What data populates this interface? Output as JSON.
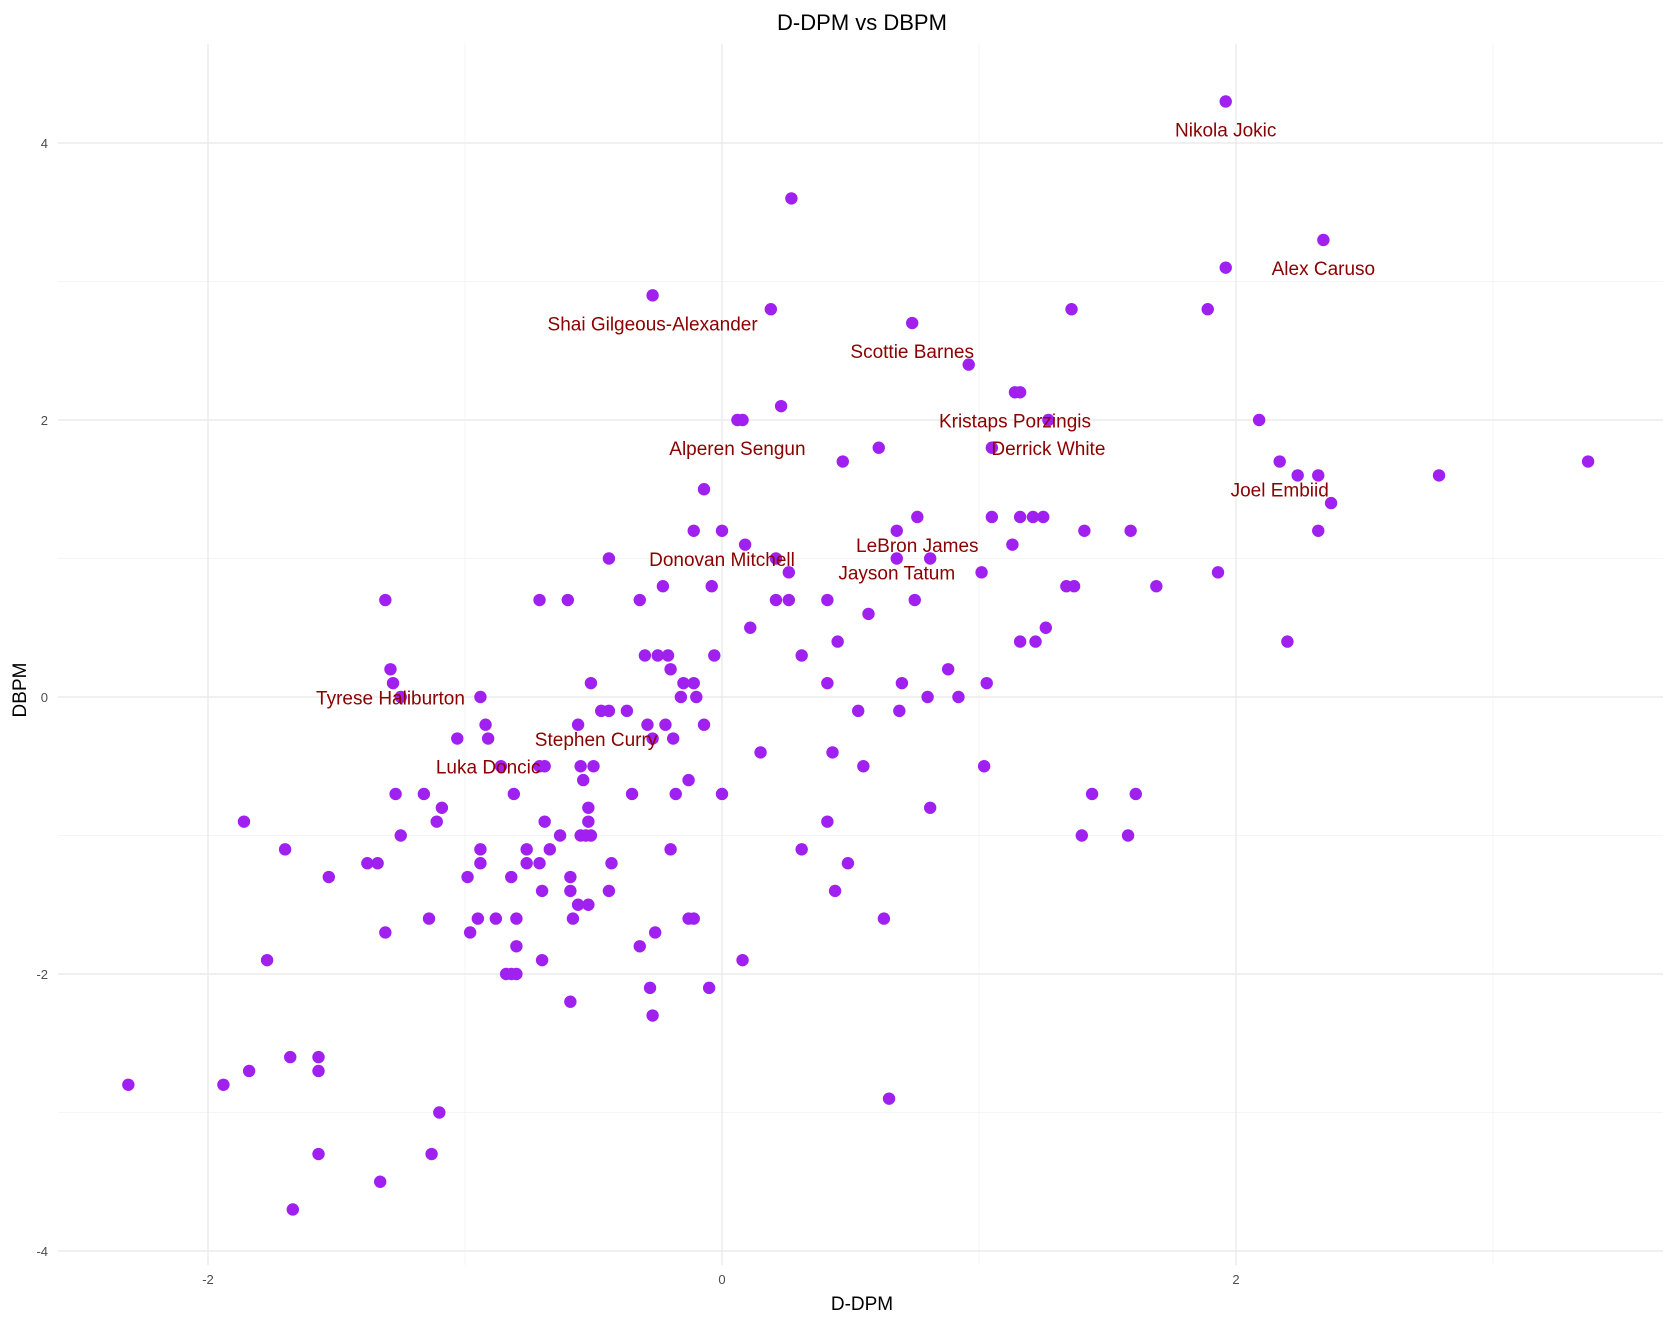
{
  "chart_data": {
    "type": "scatter",
    "title": "D-DPM vs DBPM",
    "xlabel": "D-DPM",
    "ylabel": "DBPM",
    "xlim": [
      -2.6,
      3.7
    ],
    "ylim": [
      -4.2,
      4.5
    ],
    "x_ticks": [
      -2,
      0,
      2
    ],
    "y_ticks": [
      -4,
      -2,
      0,
      2,
      4
    ],
    "grid": true,
    "legend": "none",
    "point_color": "#a020f0",
    "label_color": "#8b0000",
    "points": [
      {
        "x": 1.96,
        "y": 4.3
      },
      {
        "x": 0.27,
        "y": 3.6
      },
      {
        "x": 2.34,
        "y": 3.3
      },
      {
        "x": 1.96,
        "y": 3.1
      },
      {
        "x": -0.27,
        "y": 2.9
      },
      {
        "x": 0.19,
        "y": 2.8
      },
      {
        "x": 1.36,
        "y": 2.8
      },
      {
        "x": 1.89,
        "y": 2.8
      },
      {
        "x": 0.74,
        "y": 2.7
      },
      {
        "x": 0.96,
        "y": 2.4
      },
      {
        "x": 1.14,
        "y": 2.2
      },
      {
        "x": 1.16,
        "y": 2.2
      },
      {
        "x": 0.23,
        "y": 2.1
      },
      {
        "x": 0.06,
        "y": 2.0
      },
      {
        "x": 0.08,
        "y": 2.0
      },
      {
        "x": 1.27,
        "y": 2.0
      },
      {
        "x": 2.09,
        "y": 2.0
      },
      {
        "x": 0.61,
        "y": 1.8
      },
      {
        "x": 1.05,
        "y": 1.8
      },
      {
        "x": 0.47,
        "y": 1.7
      },
      {
        "x": 2.17,
        "y": 1.7
      },
      {
        "x": 3.37,
        "y": 1.7
      },
      {
        "x": 2.24,
        "y": 1.6
      },
      {
        "x": 2.32,
        "y": 1.6
      },
      {
        "x": 2.79,
        "y": 1.6
      },
      {
        "x": -0.07,
        "y": 1.5
      },
      {
        "x": 0.76,
        "y": 1.3
      },
      {
        "x": 1.05,
        "y": 1.3
      },
      {
        "x": 1.16,
        "y": 1.3
      },
      {
        "x": 1.21,
        "y": 1.3
      },
      {
        "x": 1.25,
        "y": 1.3
      },
      {
        "x": 2.37,
        "y": 1.4
      },
      {
        "x": -0.11,
        "y": 1.2
      },
      {
        "x": 0.0,
        "y": 1.2
      },
      {
        "x": 0.68,
        "y": 1.2
      },
      {
        "x": 1.41,
        "y": 1.2
      },
      {
        "x": 1.59,
        "y": 1.2
      },
      {
        "x": 2.32,
        "y": 1.2
      },
      {
        "x": 0.09,
        "y": 1.1
      },
      {
        "x": 1.13,
        "y": 1.1
      },
      {
        "x": -0.44,
        "y": 1.0
      },
      {
        "x": 0.21,
        "y": 1.0
      },
      {
        "x": 0.68,
        "y": 1.0
      },
      {
        "x": 0.81,
        "y": 1.0
      },
      {
        "x": 0.26,
        "y": 0.9
      },
      {
        "x": 1.01,
        "y": 0.9
      },
      {
        "x": 1.93,
        "y": 0.9
      },
      {
        "x": -0.23,
        "y": 0.8
      },
      {
        "x": -0.04,
        "y": 0.8
      },
      {
        "x": 1.34,
        "y": 0.8
      },
      {
        "x": 1.37,
        "y": 0.8
      },
      {
        "x": 1.69,
        "y": 0.8
      },
      {
        "x": -1.31,
        "y": 0.7
      },
      {
        "x": -0.71,
        "y": 0.7
      },
      {
        "x": -0.6,
        "y": 0.7
      },
      {
        "x": -0.32,
        "y": 0.7
      },
      {
        "x": 0.21,
        "y": 0.7
      },
      {
        "x": 0.26,
        "y": 0.7
      },
      {
        "x": 0.41,
        "y": 0.7
      },
      {
        "x": 0.75,
        "y": 0.7
      },
      {
        "x": 0.57,
        "y": 0.6
      },
      {
        "x": 0.11,
        "y": 0.5
      },
      {
        "x": 1.26,
        "y": 0.5
      },
      {
        "x": 0.45,
        "y": 0.4
      },
      {
        "x": 1.16,
        "y": 0.4
      },
      {
        "x": 1.22,
        "y": 0.4
      },
      {
        "x": 2.2,
        "y": 0.4
      },
      {
        "x": -0.3,
        "y": 0.3
      },
      {
        "x": -0.25,
        "y": 0.3
      },
      {
        "x": -0.21,
        "y": 0.3
      },
      {
        "x": -0.03,
        "y": 0.3
      },
      {
        "x": 0.31,
        "y": 0.3
      },
      {
        "x": -1.29,
        "y": 0.2
      },
      {
        "x": -0.2,
        "y": 0.2
      },
      {
        "x": 0.88,
        "y": 0.2
      },
      {
        "x": -1.28,
        "y": 0.1
      },
      {
        "x": -0.51,
        "y": 0.1
      },
      {
        "x": -0.15,
        "y": 0.1
      },
      {
        "x": -0.11,
        "y": 0.1
      },
      {
        "x": 0.41,
        "y": 0.1
      },
      {
        "x": 0.7,
        "y": 0.1
      },
      {
        "x": 1.03,
        "y": 0.1
      },
      {
        "x": -1.25,
        "y": 0.0
      },
      {
        "x": -0.94,
        "y": 0.0
      },
      {
        "x": -0.16,
        "y": 0.0
      },
      {
        "x": -0.1,
        "y": 0.0
      },
      {
        "x": 0.8,
        "y": 0.0
      },
      {
        "x": 0.92,
        "y": 0.0
      },
      {
        "x": -0.47,
        "y": -0.1
      },
      {
        "x": -0.44,
        "y": -0.1
      },
      {
        "x": -0.37,
        "y": -0.1
      },
      {
        "x": 0.53,
        "y": -0.1
      },
      {
        "x": 0.69,
        "y": -0.1
      },
      {
        "x": -1.03,
        "y": -0.3
      },
      {
        "x": -0.91,
        "y": -0.3
      },
      {
        "x": -0.27,
        "y": -0.3
      },
      {
        "x": -0.19,
        "y": -0.3
      },
      {
        "x": -0.56,
        "y": -0.2
      },
      {
        "x": -0.29,
        "y": -0.2
      },
      {
        "x": -0.22,
        "y": -0.2
      },
      {
        "x": -0.07,
        "y": -0.2
      },
      {
        "x": -0.92,
        "y": -0.2
      },
      {
        "x": 0.15,
        "y": -0.4
      },
      {
        "x": 0.43,
        "y": -0.4
      },
      {
        "x": -0.86,
        "y": -0.5
      },
      {
        "x": -0.71,
        "y": -0.5
      },
      {
        "x": -0.69,
        "y": -0.5
      },
      {
        "x": -0.55,
        "y": -0.5
      },
      {
        "x": -0.5,
        "y": -0.5
      },
      {
        "x": 0.55,
        "y": -0.5
      },
      {
        "x": 1.02,
        "y": -0.5
      },
      {
        "x": -0.54,
        "y": -0.6
      },
      {
        "x": -0.13,
        "y": -0.6
      },
      {
        "x": -1.27,
        "y": -0.7
      },
      {
        "x": -1.16,
        "y": -0.7
      },
      {
        "x": -0.81,
        "y": -0.7
      },
      {
        "x": -0.35,
        "y": -0.7
      },
      {
        "x": -0.18,
        "y": -0.7
      },
      {
        "x": 0.0,
        "y": -0.7
      },
      {
        "x": 1.44,
        "y": -0.7
      },
      {
        "x": 1.61,
        "y": -0.7
      },
      {
        "x": -1.09,
        "y": -0.8
      },
      {
        "x": -0.52,
        "y": -0.8
      },
      {
        "x": 0.81,
        "y": -0.8
      },
      {
        "x": -1.86,
        "y": -0.9
      },
      {
        "x": -1.11,
        "y": -0.9
      },
      {
        "x": -0.69,
        "y": -0.9
      },
      {
        "x": -0.52,
        "y": -0.9
      },
      {
        "x": 0.41,
        "y": -0.9
      },
      {
        "x": -1.25,
        "y": -1.0
      },
      {
        "x": -0.63,
        "y": -1.0
      },
      {
        "x": -0.55,
        "y": -1.0
      },
      {
        "x": -0.53,
        "y": -1.0
      },
      {
        "x": -0.51,
        "y": -1.0
      },
      {
        "x": 1.4,
        "y": -1.0
      },
      {
        "x": 1.58,
        "y": -1.0
      },
      {
        "x": -1.7,
        "y": -1.1
      },
      {
        "x": -0.94,
        "y": -1.1
      },
      {
        "x": -0.76,
        "y": -1.1
      },
      {
        "x": -0.67,
        "y": -1.1
      },
      {
        "x": -0.2,
        "y": -1.1
      },
      {
        "x": 0.31,
        "y": -1.1
      },
      {
        "x": -1.38,
        "y": -1.2
      },
      {
        "x": -1.34,
        "y": -1.2
      },
      {
        "x": -0.94,
        "y": -1.2
      },
      {
        "x": -0.76,
        "y": -1.2
      },
      {
        "x": -0.71,
        "y": -1.2
      },
      {
        "x": -0.43,
        "y": -1.2
      },
      {
        "x": 0.49,
        "y": -1.2
      },
      {
        "x": -1.53,
        "y": -1.3
      },
      {
        "x": -0.99,
        "y": -1.3
      },
      {
        "x": -0.82,
        "y": -1.3
      },
      {
        "x": -0.59,
        "y": -1.3
      },
      {
        "x": -0.7,
        "y": -1.4
      },
      {
        "x": -0.59,
        "y": -1.4
      },
      {
        "x": -0.44,
        "y": -1.4
      },
      {
        "x": 0.44,
        "y": -1.4
      },
      {
        "x": -0.56,
        "y": -1.5
      },
      {
        "x": -0.52,
        "y": -1.5
      },
      {
        "x": -1.14,
        "y": -1.6
      },
      {
        "x": -0.95,
        "y": -1.6
      },
      {
        "x": -0.88,
        "y": -1.6
      },
      {
        "x": -0.8,
        "y": -1.6
      },
      {
        "x": -0.58,
        "y": -1.6
      },
      {
        "x": -0.13,
        "y": -1.6
      },
      {
        "x": -0.11,
        "y": -1.6
      },
      {
        "x": 0.63,
        "y": -1.6
      },
      {
        "x": -1.31,
        "y": -1.7
      },
      {
        "x": -0.98,
        "y": -1.7
      },
      {
        "x": -0.26,
        "y": -1.7
      },
      {
        "x": -0.8,
        "y": -1.8
      },
      {
        "x": -0.32,
        "y": -1.8
      },
      {
        "x": -1.77,
        "y": -1.9
      },
      {
        "x": -0.7,
        "y": -1.9
      },
      {
        "x": 0.08,
        "y": -1.9
      },
      {
        "x": -0.84,
        "y": -2.0
      },
      {
        "x": -0.82,
        "y": -2.0
      },
      {
        "x": -0.8,
        "y": -2.0
      },
      {
        "x": -0.28,
        "y": -2.1
      },
      {
        "x": -0.05,
        "y": -2.1
      },
      {
        "x": -0.59,
        "y": -2.2
      },
      {
        "x": -0.27,
        "y": -2.3
      },
      {
        "x": -2.31,
        "y": -2.8
      },
      {
        "x": -1.94,
        "y": -2.8
      },
      {
        "x": -1.84,
        "y": -2.7
      },
      {
        "x": -1.68,
        "y": -2.6
      },
      {
        "x": -1.57,
        "y": -2.6
      },
      {
        "x": -1.57,
        "y": -2.7
      },
      {
        "x": 0.65,
        "y": -2.9
      },
      {
        "x": -1.1,
        "y": -3.0
      },
      {
        "x": -1.57,
        "y": -3.3
      },
      {
        "x": -1.13,
        "y": -3.3
      },
      {
        "x": -1.33,
        "y": -3.5
      },
      {
        "x": -1.67,
        "y": -3.7
      }
    ],
    "annotations": [
      {
        "text": "Nikola Jokic",
        "x": 1.96,
        "y": 4.09
      },
      {
        "text": "Alex Caruso",
        "x": 2.34,
        "y": 3.09
      },
      {
        "text": "Shai Gilgeous-Alexander",
        "x": -0.27,
        "y": 2.69
      },
      {
        "text": "Scottie Barnes",
        "x": 0.74,
        "y": 2.49
      },
      {
        "text": "Kristaps Porzingis",
        "x": 1.14,
        "y": 1.99
      },
      {
        "text": "Derrick White",
        "x": 1.27,
        "y": 1.79
      },
      {
        "text": "Alperen Sengun",
        "x": 0.06,
        "y": 1.79
      },
      {
        "text": "Joel Embiid",
        "x": 2.17,
        "y": 1.49
      },
      {
        "text": "LeBron James",
        "x": 0.76,
        "y": 1.09
      },
      {
        "text": "Donovan Mitchell",
        "x": 0.0,
        "y": 0.99
      },
      {
        "text": "Jayson Tatum",
        "x": 0.68,
        "y": 0.89
      },
      {
        "text": "Tyrese Haliburton",
        "x": -1.29,
        "y": -0.01
      },
      {
        "text": "Stephen Curry",
        "x": -0.49,
        "y": -0.31
      },
      {
        "text": "Luka Doncic",
        "x": -0.91,
        "y": -0.51
      }
    ]
  }
}
